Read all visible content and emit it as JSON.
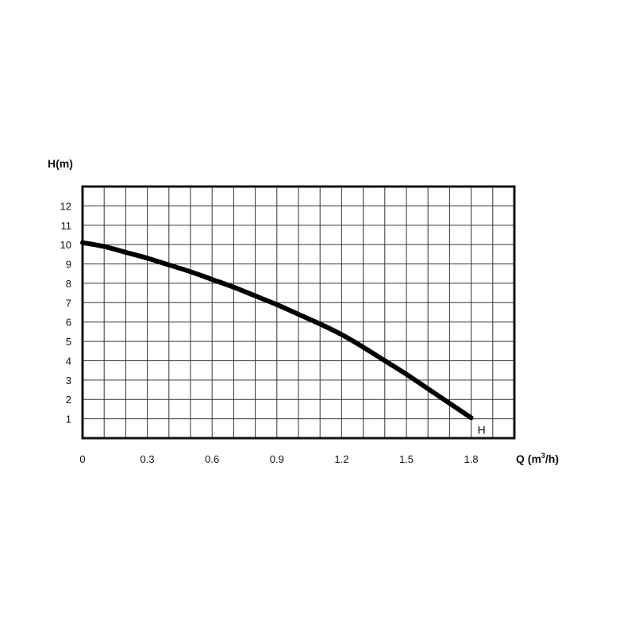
{
  "chart_data": {
    "type": "line",
    "ylabel": "H(m)",
    "xlabel_main": "Q (m",
    "xlabel_sup": "3",
    "xlabel_end": "/h)",
    "xlim": [
      0,
      2.0
    ],
    "ylim": [
      0,
      13
    ],
    "x_ticks": [
      0,
      0.3,
      0.6,
      0.9,
      1.2,
      1.5,
      1.8
    ],
    "x_tick_labels": [
      "0",
      "0.3",
      "0.6",
      "0.9",
      "1.2",
      "1.5",
      "1.8"
    ],
    "y_ticks": [
      1,
      2,
      3,
      4,
      5,
      6,
      7,
      8,
      9,
      10,
      11,
      12
    ],
    "y_tick_labels": [
      "1",
      "2",
      "3",
      "4",
      "5",
      "6",
      "7",
      "8",
      "9",
      "10",
      "11",
      "12"
    ],
    "grid": true,
    "series": [
      {
        "name": "H",
        "x": [
          0,
          0.1,
          0.2,
          0.3,
          0.4,
          0.5,
          0.6,
          0.7,
          0.8,
          0.9,
          1.0,
          1.1,
          1.2,
          1.3,
          1.4,
          1.5,
          1.6,
          1.7,
          1.8
        ],
        "y": [
          10.1,
          9.9,
          9.6,
          9.3,
          8.95,
          8.6,
          8.2,
          7.8,
          7.35,
          6.9,
          6.4,
          5.9,
          5.35,
          4.7,
          4.0,
          3.3,
          2.55,
          1.8,
          1.05
        ]
      }
    ]
  }
}
